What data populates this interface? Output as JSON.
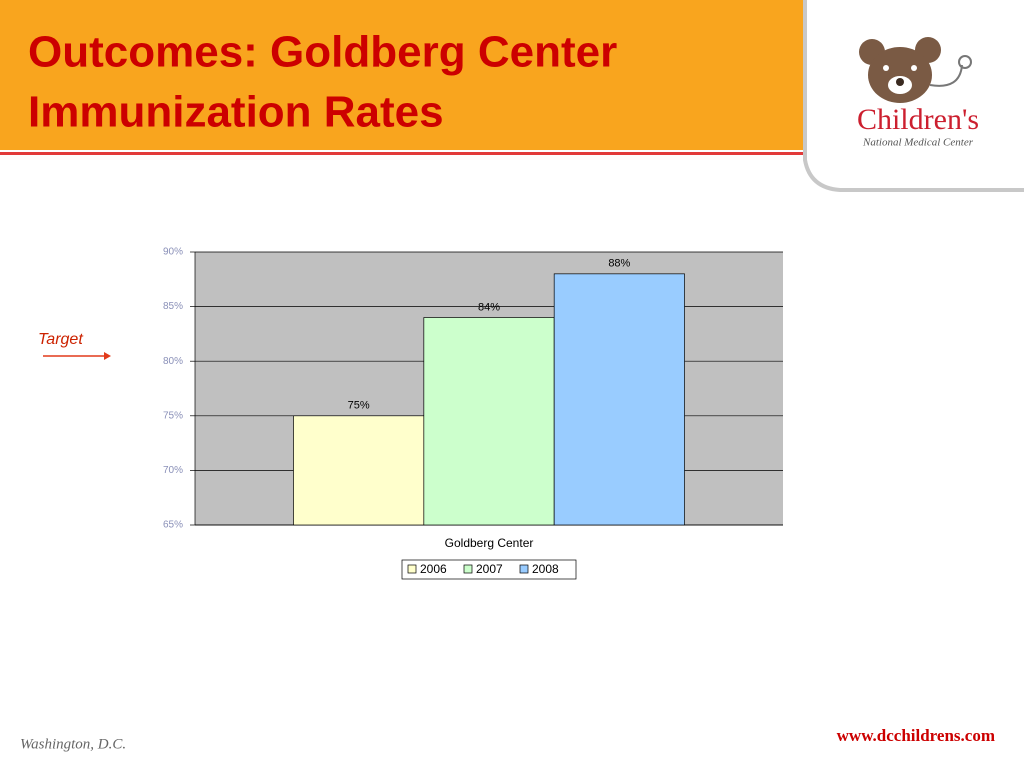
{
  "header": {
    "title_lines": [
      "Outcomes: Goldberg Center",
      "Immunization Rates"
    ]
  },
  "logo": {
    "name": "Children's",
    "subtitle": "National Medical Center"
  },
  "annotation": "Target",
  "footer": {
    "location": "Washington, D.C.",
    "url": "www.dcchildrens.com"
  },
  "chart_data": {
    "type": "bar",
    "categories": [
      "Goldberg Center"
    ],
    "series": [
      {
        "name": "2006",
        "color": "#ffffcc",
        "values": [
          75
        ],
        "value_labels": [
          "75%"
        ]
      },
      {
        "name": "2007",
        "color": "#ccffcc",
        "values": [
          84
        ],
        "value_labels": [
          "84%"
        ]
      },
      {
        "name": "2008",
        "color": "#99ccff",
        "values": [
          88
        ],
        "value_labels": [
          "88%"
        ]
      }
    ],
    "ylim": [
      65,
      90
    ],
    "yticks": [
      {
        "value": 65,
        "label": "65%"
      },
      {
        "value": 70,
        "label": "70%"
      },
      {
        "value": 75,
        "label": "75%"
      },
      {
        "value": 80,
        "label": "80%"
      },
      {
        "value": 85,
        "label": "85%"
      },
      {
        "value": 90,
        "label": "90%"
      }
    ],
    "grid": true,
    "legend": "bottom"
  }
}
